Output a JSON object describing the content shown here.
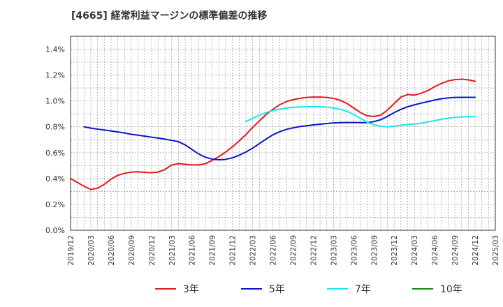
{
  "title": "[4665]  経常利益マージンの標準偏差の推移",
  "chart_data": {
    "type": "line",
    "title": "[4665]  経常利益マージンの標準偏差の推移",
    "xlabel": "",
    "ylabel": "",
    "x_ticks": [
      "2019/12",
      "2020/03",
      "2020/06",
      "2020/09",
      "2020/12",
      "2021/03",
      "2021/06",
      "2021/09",
      "2021/12",
      "2022/03",
      "2022/06",
      "2022/09",
      "2022/12",
      "2023/03",
      "2023/06",
      "2023/09",
      "2023/12",
      "2024/03",
      "2024/06",
      "2024/09",
      "2024/12",
      "2025/03"
    ],
    "y_ticks": [
      "0.0%",
      "0.2%",
      "0.4%",
      "0.6%",
      "0.8%",
      "1.0%",
      "1.2%",
      "1.4%"
    ],
    "ylim": [
      0,
      1.5
    ],
    "y_unit": "%",
    "grid": true,
    "legend_position": "bottom",
    "series": [
      {
        "name": "3年",
        "color": "#e31a1c",
        "x": [
          "2019/12",
          "2020/01",
          "2020/02",
          "2020/03",
          "2020/04",
          "2020/05",
          "2020/06",
          "2020/07",
          "2020/08",
          "2020/09",
          "2020/10",
          "2020/11",
          "2020/12",
          "2021/01",
          "2021/02",
          "2021/03",
          "2021/04",
          "2021/05",
          "2021/06",
          "2021/07",
          "2021/08",
          "2021/09",
          "2021/10",
          "2021/11",
          "2021/12",
          "2022/01",
          "2022/02",
          "2022/03",
          "2022/04",
          "2022/05",
          "2022/06",
          "2022/07",
          "2022/08",
          "2022/09",
          "2022/10",
          "2022/11",
          "2022/12",
          "2023/01",
          "2023/02",
          "2023/03",
          "2023/04",
          "2023/05",
          "2023/06",
          "2023/07",
          "2023/08",
          "2023/09",
          "2023/10",
          "2023/11",
          "2023/12",
          "2024/01",
          "2024/02",
          "2024/03",
          "2024/04",
          "2024/05",
          "2024/06",
          "2024/07",
          "2024/08",
          "2024/09",
          "2024/10",
          "2024/11",
          "2024/12"
        ],
        "values": [
          0.4,
          0.37,
          0.34,
          0.315,
          0.325,
          0.355,
          0.395,
          0.425,
          0.44,
          0.45,
          0.452,
          0.448,
          0.445,
          0.45,
          0.47,
          0.505,
          0.515,
          0.51,
          0.505,
          0.505,
          0.515,
          0.54,
          0.57,
          0.605,
          0.645,
          0.69,
          0.74,
          0.795,
          0.845,
          0.895,
          0.935,
          0.97,
          0.995,
          1.01,
          1.02,
          1.027,
          1.03,
          1.03,
          1.027,
          1.02,
          1.005,
          0.98,
          0.945,
          0.91,
          0.885,
          0.88,
          0.89,
          0.93,
          0.98,
          1.03,
          1.05,
          1.045,
          1.06,
          1.08,
          1.11,
          1.135,
          1.155,
          1.165,
          1.168,
          1.163,
          1.152
        ]
      },
      {
        "name": "5年",
        "color": "#0b15c8",
        "x": [
          "2020/02",
          "2020/03",
          "2020/04",
          "2020/05",
          "2020/06",
          "2020/07",
          "2020/08",
          "2020/09",
          "2020/10",
          "2020/11",
          "2020/12",
          "2021/01",
          "2021/02",
          "2021/03",
          "2021/04",
          "2021/05",
          "2021/06",
          "2021/07",
          "2021/08",
          "2021/09",
          "2021/10",
          "2021/11",
          "2021/12",
          "2022/01",
          "2022/02",
          "2022/03",
          "2022/04",
          "2022/05",
          "2022/06",
          "2022/07",
          "2022/08",
          "2022/09",
          "2022/10",
          "2022/11",
          "2022/12",
          "2023/01",
          "2023/02",
          "2023/03",
          "2023/04",
          "2023/05",
          "2023/06",
          "2023/07",
          "2023/08",
          "2023/09",
          "2023/10",
          "2023/11",
          "2023/12",
          "2024/01",
          "2024/02",
          "2024/03",
          "2024/04",
          "2024/05",
          "2024/06",
          "2024/07",
          "2024/08",
          "2024/09",
          "2024/10",
          "2024/11",
          "2024/12"
        ],
        "values": [
          0.8,
          0.79,
          0.782,
          0.775,
          0.768,
          0.76,
          0.752,
          0.742,
          0.735,
          0.728,
          0.72,
          0.713,
          0.705,
          0.695,
          0.685,
          0.66,
          0.625,
          0.59,
          0.565,
          0.55,
          0.545,
          0.548,
          0.56,
          0.58,
          0.605,
          0.635,
          0.67,
          0.705,
          0.738,
          0.762,
          0.78,
          0.792,
          0.802,
          0.808,
          0.815,
          0.82,
          0.825,
          0.83,
          0.832,
          0.833,
          0.833,
          0.832,
          0.832,
          0.84,
          0.855,
          0.88,
          0.91,
          0.935,
          0.955,
          0.97,
          0.983,
          0.995,
          1.007,
          1.017,
          1.023,
          1.027,
          1.028,
          1.028,
          1.028
        ]
      },
      {
        "name": "7年",
        "color": "#17e8f0",
        "x": [
          "2022/02",
          "2022/03",
          "2022/04",
          "2022/05",
          "2022/06",
          "2022/07",
          "2022/08",
          "2022/09",
          "2022/10",
          "2022/11",
          "2022/12",
          "2023/01",
          "2023/02",
          "2023/03",
          "2023/04",
          "2023/05",
          "2023/06",
          "2023/07",
          "2023/08",
          "2023/09",
          "2023/10",
          "2023/11",
          "2023/12",
          "2024/01",
          "2024/02",
          "2024/03",
          "2024/04",
          "2024/05",
          "2024/06",
          "2024/07",
          "2024/08",
          "2024/09",
          "2024/10",
          "2024/11",
          "2024/12"
        ],
        "values": [
          0.84,
          0.865,
          0.89,
          0.91,
          0.925,
          0.937,
          0.945,
          0.95,
          0.953,
          0.955,
          0.956,
          0.955,
          0.952,
          0.945,
          0.935,
          0.92,
          0.895,
          0.865,
          0.835,
          0.815,
          0.805,
          0.8,
          0.805,
          0.812,
          0.818,
          0.822,
          0.828,
          0.838,
          0.848,
          0.858,
          0.867,
          0.873,
          0.877,
          0.878,
          0.878
        ]
      },
      {
        "name": "10年",
        "color": "#1a8a1a",
        "x": [],
        "values": []
      }
    ]
  }
}
